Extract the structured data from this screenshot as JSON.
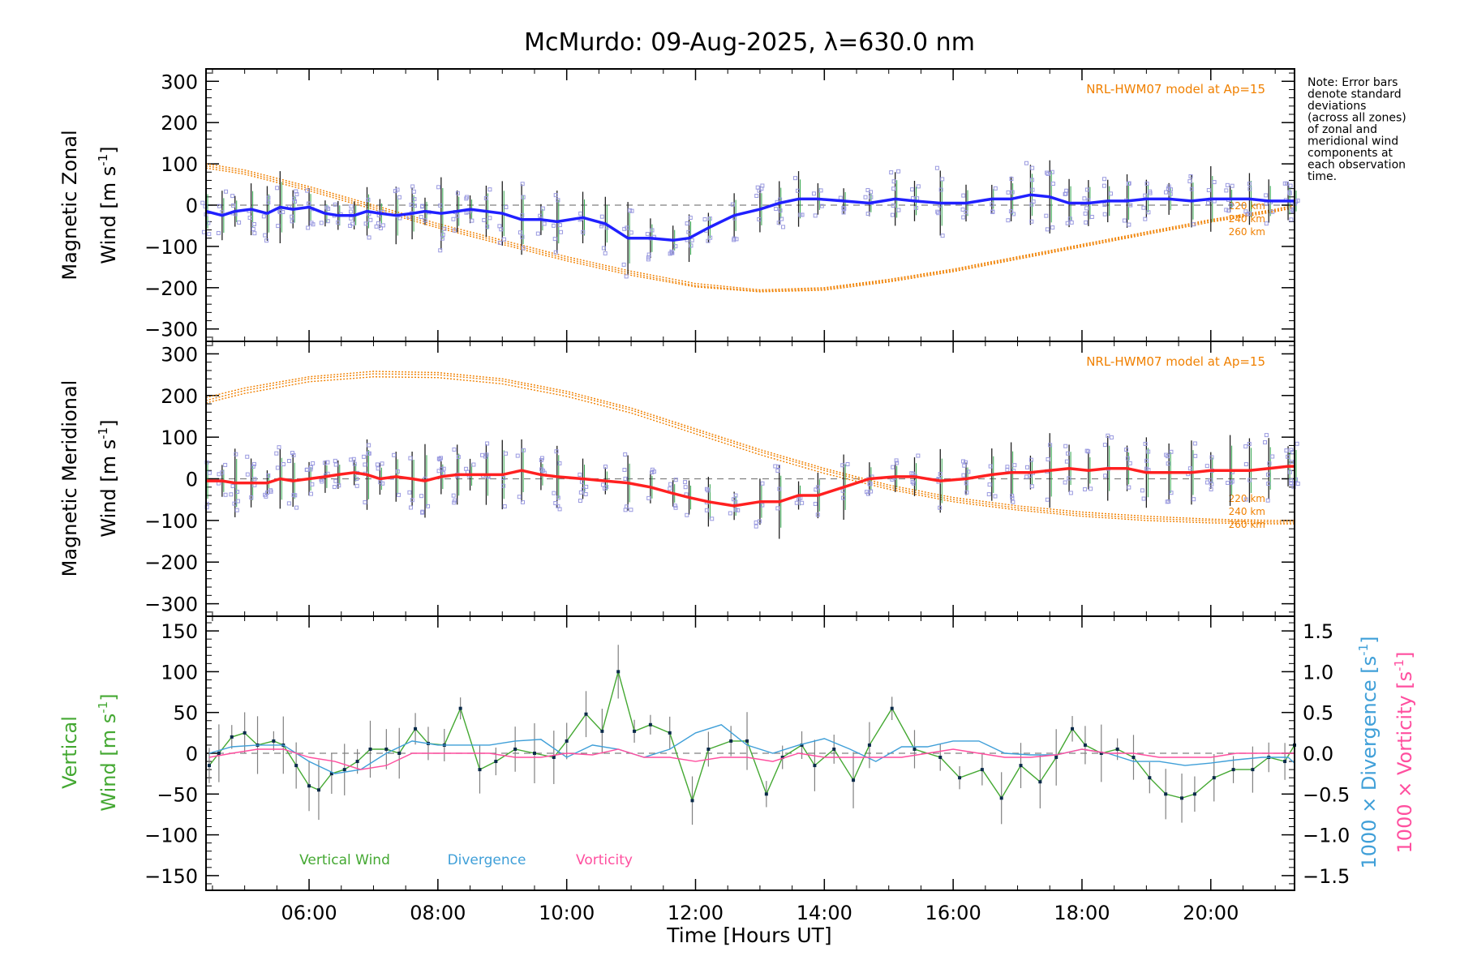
{
  "chart_data": [
    {
      "id": "zonal",
      "type": "line",
      "title": "McMurdo: 09-Aug-2025, λ=630.0 nm",
      "ylabel_line1": "Magnetic Zonal",
      "ylabel_line2_prefix": "Wind ",
      "ylabel_unit": "[m s",
      "ylabel_unit_exp": "-1",
      "ylabel_unit_close": "]",
      "ylim": [
        -330,
        330
      ],
      "yticks": [
        300,
        200,
        100,
        0,
        -100,
        -200,
        -300
      ],
      "ytick_labels": [
        "300",
        "200",
        "100",
        "0",
        "−100",
        "−200",
        "−300"
      ],
      "model_label": "NRL-HWM07 model at Ap=15",
      "model_heights": [
        "220 km",
        "240 km",
        "260 km"
      ],
      "model_series": [
        {
          "name": "220 km",
          "x": [
            4.4,
            5,
            6,
            7,
            8,
            9,
            10,
            11,
            12,
            13,
            14,
            15,
            16,
            17,
            18,
            19,
            20,
            21,
            21.3
          ],
          "y": [
            100,
            85,
            45,
            0,
            -45,
            -85,
            -125,
            -160,
            -190,
            -205,
            -200,
            -180,
            -155,
            -125,
            -95,
            -65,
            -35,
            -10,
            0
          ]
        },
        {
          "name": "240 km",
          "x": [
            4.4,
            5,
            6,
            7,
            8,
            9,
            10,
            11,
            12,
            13,
            14,
            15,
            16,
            17,
            18,
            19,
            20,
            21,
            21.3
          ],
          "y": [
            95,
            80,
            40,
            -5,
            -50,
            -90,
            -130,
            -165,
            -195,
            -208,
            -203,
            -183,
            -158,
            -128,
            -98,
            -68,
            -38,
            -13,
            -3
          ]
        },
        {
          "name": "260 km",
          "x": [
            4.4,
            5,
            6,
            7,
            8,
            9,
            10,
            11,
            12,
            13,
            14,
            15,
            16,
            17,
            18,
            19,
            20,
            21,
            21.3
          ],
          "y": [
            90,
            75,
            35,
            -10,
            -55,
            -95,
            -135,
            -170,
            -198,
            -210,
            -206,
            -186,
            -161,
            -131,
            -101,
            -71,
            -41,
            -16,
            -6
          ]
        }
      ],
      "mean_series": {
        "name": "Zonal wind",
        "x": [
          4.4,
          4.65,
          4.85,
          5.1,
          5.35,
          5.55,
          5.75,
          6.0,
          6.25,
          6.45,
          6.7,
          6.9,
          7.1,
          7.35,
          7.6,
          7.8,
          8.05,
          8.3,
          8.5,
          8.75,
          9.0,
          9.3,
          9.6,
          9.85,
          10.25,
          10.6,
          10.95,
          11.3,
          11.65,
          11.9,
          12.2,
          12.6,
          13.0,
          13.3,
          13.6,
          13.9,
          14.3,
          14.7,
          15.1,
          15.4,
          15.8,
          16.2,
          16.6,
          16.9,
          17.2,
          17.5,
          17.8,
          18.1,
          18.4,
          18.7,
          19.0,
          19.35,
          19.7,
          20.0,
          20.3,
          20.6,
          20.9,
          21.2,
          21.3
        ],
        "y": [
          -15,
          -25,
          -15,
          -10,
          -20,
          -5,
          -10,
          -5,
          -20,
          -25,
          -25,
          -15,
          -20,
          -25,
          -20,
          -15,
          -20,
          -15,
          -10,
          -15,
          -20,
          -35,
          -35,
          -40,
          -30,
          -45,
          -80,
          -80,
          -85,
          -80,
          -55,
          -25,
          -10,
          5,
          15,
          15,
          10,
          5,
          15,
          10,
          5,
          5,
          15,
          15,
          25,
          20,
          5,
          5,
          10,
          10,
          15,
          15,
          10,
          15,
          15,
          15,
          10,
          10,
          10
        ]
      },
      "mean_color": "#2020ff"
    },
    {
      "id": "meridional",
      "type": "line",
      "ylabel_line1": "Magnetic Meridional",
      "ylabel_line2_prefix": "Wind ",
      "ylabel_unit": "[m s",
      "ylabel_unit_exp": "-1",
      "ylabel_unit_close": "]",
      "ylim": [
        -330,
        330
      ],
      "yticks": [
        300,
        200,
        100,
        0,
        -100,
        -200,
        -300
      ],
      "ytick_labels": [
        "300",
        "200",
        "100",
        "0",
        "−100",
        "−200",
        "−300"
      ],
      "model_label": "NRL-HWM07 model at Ap=15",
      "model_heights": [
        "220 km",
        "240 km",
        "260 km"
      ],
      "model_series": [
        {
          "name": "220 km",
          "x": [
            4.4,
            5,
            6,
            7,
            8,
            9,
            10,
            11,
            12,
            13,
            14,
            15,
            16,
            17,
            18,
            19,
            20,
            21,
            21.3
          ],
          "y": [
            195,
            218,
            245,
            258,
            255,
            240,
            210,
            170,
            120,
            70,
            25,
            -15,
            -45,
            -65,
            -80,
            -90,
            -97,
            -100,
            -100
          ]
        },
        {
          "name": "240 km",
          "x": [
            4.4,
            5,
            6,
            7,
            8,
            9,
            10,
            11,
            12,
            13,
            14,
            15,
            16,
            17,
            18,
            19,
            20,
            21,
            21.3
          ],
          "y": [
            188,
            212,
            240,
            252,
            250,
            235,
            205,
            165,
            115,
            65,
            20,
            -20,
            -50,
            -70,
            -85,
            -95,
            -101,
            -104,
            -104
          ]
        },
        {
          "name": "260 km",
          "x": [
            4.4,
            5,
            6,
            7,
            8,
            9,
            10,
            11,
            12,
            13,
            14,
            15,
            16,
            17,
            18,
            19,
            20,
            21,
            21.3
          ],
          "y": [
            182,
            205,
            233,
            245,
            243,
            228,
            198,
            158,
            108,
            58,
            13,
            -25,
            -55,
            -75,
            -90,
            -100,
            -106,
            -108,
            -108
          ]
        }
      ],
      "mean_series": {
        "name": "Meridional wind",
        "x": [
          4.4,
          4.65,
          4.85,
          5.1,
          5.35,
          5.55,
          5.75,
          6.0,
          6.25,
          6.45,
          6.7,
          6.9,
          7.1,
          7.35,
          7.6,
          7.8,
          8.05,
          8.3,
          8.5,
          8.75,
          9.0,
          9.3,
          9.6,
          9.85,
          10.25,
          10.6,
          10.95,
          11.3,
          11.65,
          11.9,
          12.2,
          12.6,
          13.0,
          13.3,
          13.6,
          13.9,
          14.3,
          14.7,
          15.1,
          15.4,
          15.8,
          16.2,
          16.6,
          16.9,
          17.2,
          17.5,
          17.8,
          18.1,
          18.4,
          18.7,
          19.0,
          19.35,
          19.7,
          20.0,
          20.3,
          20.6,
          20.9,
          21.2,
          21.3
        ],
        "y": [
          -5,
          -5,
          -10,
          -10,
          -10,
          0,
          -5,
          0,
          5,
          10,
          15,
          10,
          0,
          5,
          0,
          -5,
          5,
          10,
          10,
          10,
          10,
          20,
          10,
          5,
          0,
          -5,
          -10,
          -20,
          -35,
          -45,
          -55,
          -65,
          -55,
          -55,
          -40,
          -40,
          -20,
          0,
          5,
          5,
          -5,
          0,
          10,
          15,
          15,
          20,
          25,
          20,
          25,
          25,
          15,
          15,
          15,
          20,
          20,
          20,
          25,
          30,
          30
        ]
      },
      "mean_color": "#ff2020"
    },
    {
      "id": "vertical",
      "type": "line",
      "ylabel_line1": "Vertical",
      "ylabel_line2_prefix": "Wind ",
      "ylabel_unit": "[m s",
      "ylabel_unit_exp": "-1",
      "ylabel_unit_close": "]",
      "ylim": [
        -168,
        168
      ],
      "yticks": [
        150,
        100,
        50,
        0,
        -50,
        -100,
        -150
      ],
      "ytick_labels": [
        "150",
        "100",
        "50",
        "0",
        "−50",
        "−100",
        "−150"
      ],
      "right_ylim": [
        -1.68,
        1.68
      ],
      "right_yticks": [
        1.5,
        1.0,
        0.5,
        0.0,
        -0.5,
        -1.0,
        -1.5
      ],
      "right_ytick_labels": [
        "1.5",
        "1.0",
        "0.5",
        "0.0",
        "−0.5",
        "−1.0",
        "−1.5"
      ],
      "right_label_divergence": "1000 × Divergence [s",
      "right_label_vorticity": "1000 × Vorticity [s",
      "right_label_exp": "-1",
      "right_label_close": "]",
      "xlim": [
        4.4,
        21.3
      ],
      "xticks": [
        6,
        8,
        10,
        12,
        14,
        16,
        18,
        20
      ],
      "xtick_labels": [
        "06:00",
        "08:00",
        "10:00",
        "12:00",
        "14:00",
        "16:00",
        "18:00",
        "20:00"
      ],
      "xlabel": "Time [Hours UT]",
      "legend": [
        {
          "name": "Vertical Wind",
          "color": "#44a832"
        },
        {
          "name": "Divergence",
          "color": "#3f9fd8"
        },
        {
          "name": "Vorticity",
          "color": "#ff4f9f"
        }
      ],
      "series": [
        {
          "name": "Vertical Wind",
          "color": "#44a832",
          "x": [
            4.45,
            4.6,
            4.8,
            5.0,
            5.2,
            5.45,
            5.6,
            5.8,
            6.0,
            6.15,
            6.35,
            6.55,
            6.75,
            6.95,
            7.2,
            7.4,
            7.65,
            7.85,
            8.1,
            8.35,
            8.65,
            8.9,
            9.2,
            9.5,
            9.8,
            10.0,
            10.3,
            10.55,
            10.8,
            11.05,
            11.3,
            11.6,
            11.95,
            12.2,
            12.55,
            12.8,
            13.1,
            13.35,
            13.65,
            13.85,
            14.15,
            14.45,
            14.7,
            15.05,
            15.4,
            15.8,
            16.1,
            16.45,
            16.75,
            17.05,
            17.35,
            17.6,
            17.85,
            18.05,
            18.3,
            18.55,
            18.8,
            19.05,
            19.3,
            19.55,
            19.75,
            20.05,
            20.35,
            20.65,
            20.9,
            21.15,
            21.3
          ],
          "y": [
            -15,
            0,
            20,
            25,
            10,
            15,
            10,
            -15,
            -40,
            -45,
            -25,
            -20,
            -10,
            5,
            5,
            0,
            30,
            12,
            10,
            55,
            -20,
            -10,
            5,
            0,
            -5,
            15,
            48,
            27,
            100,
            27,
            35,
            25,
            -58,
            5,
            15,
            15,
            -50,
            -5,
            10,
            -15,
            5,
            -33,
            10,
            55,
            5,
            -5,
            -30,
            -20,
            -55,
            -15,
            -35,
            -5,
            30,
            10,
            0,
            5,
            -5,
            -30,
            -50,
            -55,
            -50,
            -30,
            -20,
            -20,
            -5,
            -10,
            10
          ]
        },
        {
          "name": "Divergence",
          "color": "#3f9fd8",
          "x": [
            4.45,
            4.8,
            5.2,
            5.6,
            6.0,
            6.4,
            6.8,
            7.2,
            7.6,
            8.0,
            8.4,
            8.8,
            9.2,
            9.6,
            10.0,
            10.4,
            10.8,
            11.2,
            11.6,
            12.0,
            12.4,
            12.8,
            13.2,
            13.6,
            14.0,
            14.4,
            14.8,
            15.2,
            15.6,
            16.0,
            16.4,
            16.8,
            17.2,
            17.6,
            18.0,
            18.4,
            18.8,
            19.2,
            19.6,
            20.0,
            20.4,
            20.8,
            21.2,
            21.3
          ],
          "y": [
            0.0,
            0.08,
            0.1,
            0.1,
            -0.1,
            -0.25,
            -0.2,
            0.0,
            0.15,
            0.1,
            0.1,
            0.1,
            0.15,
            0.17,
            -0.05,
            0.1,
            0.05,
            -0.05,
            0.05,
            0.25,
            0.35,
            0.1,
            0.0,
            0.1,
            0.18,
            0.05,
            -0.1,
            0.08,
            0.08,
            0.15,
            0.15,
            0.0,
            -0.02,
            -0.02,
            0.05,
            0.0,
            -0.1,
            -0.1,
            -0.15,
            -0.12,
            -0.08,
            -0.05,
            -0.05,
            -0.12
          ]
        },
        {
          "name": "Vorticity",
          "color": "#ff4f9f",
          "x": [
            4.45,
            4.8,
            5.2,
            5.6,
            6.0,
            6.4,
            6.8,
            7.2,
            7.6,
            8.0,
            8.4,
            8.8,
            9.2,
            9.6,
            10.0,
            10.4,
            10.8,
            11.2,
            11.6,
            12.0,
            12.4,
            12.8,
            13.2,
            13.6,
            14.0,
            14.4,
            14.8,
            15.2,
            15.6,
            16.0,
            16.4,
            16.8,
            17.2,
            17.6,
            18.0,
            18.4,
            18.8,
            19.2,
            19.6,
            20.0,
            20.4,
            20.8,
            21.2,
            21.3
          ],
          "y": [
            -0.05,
            0.0,
            0.05,
            0.05,
            -0.05,
            -0.1,
            -0.2,
            -0.15,
            0.0,
            0.0,
            0.0,
            0.0,
            -0.05,
            -0.05,
            0.0,
            -0.02,
            0.05,
            -0.05,
            -0.05,
            -0.1,
            -0.05,
            -0.05,
            -0.1,
            0.0,
            -0.05,
            -0.05,
            -0.05,
            -0.05,
            0.0,
            0.05,
            0.0,
            -0.05,
            -0.05,
            -0.02,
            0.05,
            0.0,
            0.0,
            -0.05,
            -0.05,
            -0.05,
            0.0,
            0.0,
            0.0,
            0.0
          ]
        }
      ]
    }
  ],
  "note": {
    "lines": [
      "Note: Error bars",
      "denote standard",
      "deviations",
      "(across all zones)",
      "of zonal and",
      "meridional wind",
      "components at",
      "each observation",
      "time."
    ]
  },
  "colors": {
    "model": "#f08000",
    "scatter": "#9a9ae0",
    "errorbar": "#202020",
    "zero_line": "#808080"
  }
}
